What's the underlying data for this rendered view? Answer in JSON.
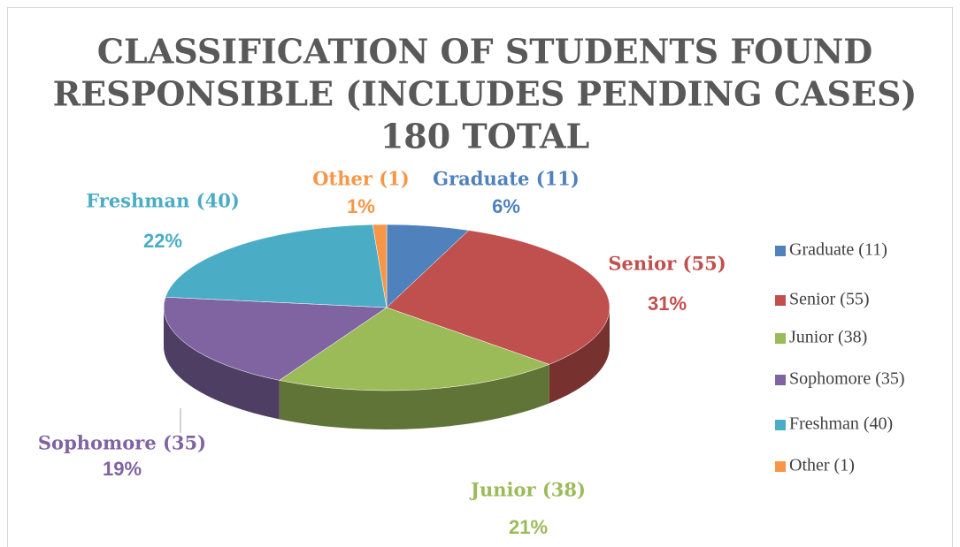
{
  "chart_data": {
    "type": "pie",
    "title": [
      "CLASSIFICATION OF STUDENTS FOUND",
      "RESPONSIBLE (INCLUDES PENDING CASES)",
      "180 TOTAL"
    ],
    "categories": [
      "Graduate (11)",
      "Senior (55)",
      "Junior (38)",
      "Sophomore (35)",
      "Freshman (40)",
      "Other (1)"
    ],
    "values": [
      6,
      31,
      21,
      19,
      22,
      1
    ],
    "value_labels": [
      "6%",
      "31%",
      "21%",
      "19%",
      "22%",
      "1%"
    ],
    "colors": [
      "#4f81bd",
      "#c0504d",
      "#9bbb59",
      "#8064a2",
      "#4bacc6",
      "#f79646"
    ],
    "legend": "right"
  }
}
